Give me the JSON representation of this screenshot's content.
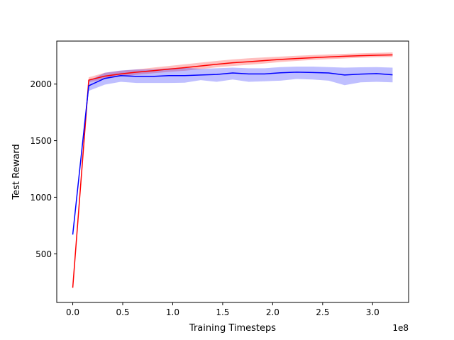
{
  "chart_data": {
    "type": "line",
    "xlabel": "Training Timesteps",
    "ylabel": "Test Reward",
    "x_offset_label": "1e8",
    "xlim": [
      -0.16,
      3.36
    ],
    "ylim": [
      70,
      2380
    ],
    "x_ticks": [
      0.0,
      0.5,
      1.0,
      1.5,
      2.0,
      2.5,
      3.0
    ],
    "x_tick_labels": [
      "0.0",
      "0.5",
      "1.0",
      "1.5",
      "2.0",
      "2.5",
      "3.0"
    ],
    "y_ticks": [
      500,
      1000,
      1500,
      2000
    ],
    "y_tick_labels": [
      "500",
      "1000",
      "1500",
      "2000"
    ],
    "grid": false,
    "legend": "none",
    "series": [
      {
        "color": "#ff0000",
        "band_color": "#ff0000",
        "band_opacity": 0.25,
        "x": [
          0.0,
          0.16,
          0.32,
          0.48,
          0.64,
          0.8,
          0.96,
          1.12,
          1.28,
          1.44,
          1.6,
          1.76,
          1.92,
          2.08,
          2.24,
          2.4,
          2.56,
          2.72,
          2.88,
          3.04,
          3.2
        ],
        "y": [
          200,
          2035,
          2070,
          2090,
          2105,
          2118,
          2132,
          2145,
          2160,
          2175,
          2188,
          2198,
          2208,
          2218,
          2226,
          2233,
          2240,
          2246,
          2251,
          2255,
          2258
        ],
        "upper": [
          200,
          2060,
          2100,
          2118,
          2130,
          2145,
          2160,
          2175,
          2190,
          2205,
          2218,
          2228,
          2236,
          2243,
          2250,
          2256,
          2262,
          2267,
          2272,
          2276,
          2280
        ],
        "lower": [
          200,
          2015,
          2045,
          2068,
          2082,
          2095,
          2108,
          2118,
          2132,
          2148,
          2160,
          2170,
          2182,
          2195,
          2205,
          2213,
          2220,
          2227,
          2233,
          2237,
          2240
        ]
      },
      {
        "color": "#0000ff",
        "band_color": "#0000ff",
        "band_opacity": 0.25,
        "x": [
          0.0,
          0.16,
          0.32,
          0.48,
          0.64,
          0.8,
          0.96,
          1.12,
          1.28,
          1.44,
          1.6,
          1.76,
          1.92,
          2.08,
          2.24,
          2.4,
          2.56,
          2.72,
          2.88,
          3.04,
          3.2
        ],
        "y": [
          670,
          1985,
          2050,
          2075,
          2068,
          2068,
          2075,
          2075,
          2080,
          2085,
          2098,
          2090,
          2090,
          2100,
          2105,
          2102,
          2098,
          2080,
          2088,
          2093,
          2082
        ],
        "upper": [
          670,
          2030,
          2100,
          2120,
          2130,
          2130,
          2140,
          2145,
          2135,
          2140,
          2145,
          2140,
          2140,
          2150,
          2155,
          2155,
          2150,
          2145,
          2148,
          2150,
          2145
        ],
        "lower": [
          670,
          1940,
          1995,
          2020,
          2010,
          2010,
          2010,
          2012,
          2035,
          2020,
          2040,
          2020,
          2025,
          2030,
          2045,
          2040,
          2030,
          1990,
          2015,
          2020,
          2015
        ]
      }
    ]
  }
}
